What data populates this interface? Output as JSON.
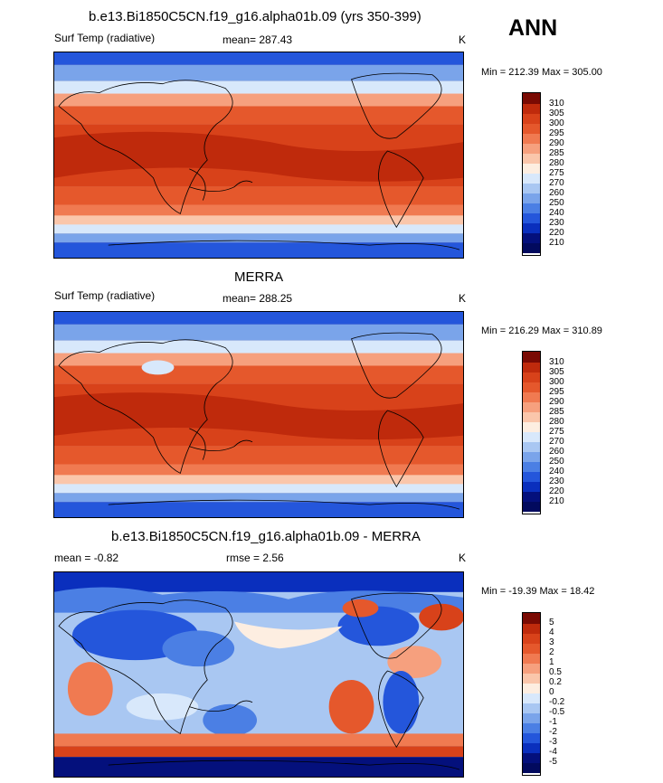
{
  "season": "ANN",
  "panels": [
    {
      "title": "b.e13.Bi1850C5CN.f19_g16.alpha01b.09 (yrs 350-399)",
      "left_label": "Surf Temp (radiative)",
      "center_label": "mean= 287.43",
      "right_label": "K",
      "minmax": "Min = 212.39 Max = 305.00",
      "levels": [
        "310",
        "305",
        "300",
        "295",
        "290",
        "285",
        "280",
        "275",
        "270",
        "260",
        "250",
        "240",
        "230",
        "220",
        "210"
      ],
      "colors": [
        "#7a0a03",
        "#bf2a0c",
        "#d8421a",
        "#e5582c",
        "#f07a51",
        "#f6a07e",
        "#fac6ab",
        "#fdeee1",
        "#d8e8fb",
        "#a9c7f2",
        "#7aa4ea",
        "#4b7fe4",
        "#2456db",
        "#0a2fbd",
        "#04107c",
        "#020a5e"
      ]
    },
    {
      "title": "MERRA",
      "left_label": "Surf Temp (radiative)",
      "center_label": "mean= 288.25",
      "right_label": "K",
      "minmax": "Min = 216.29 Max = 310.89",
      "levels": [
        "310",
        "305",
        "300",
        "295",
        "290",
        "285",
        "280",
        "275",
        "270",
        "260",
        "250",
        "240",
        "230",
        "220",
        "210"
      ],
      "colors": [
        "#7a0a03",
        "#bf2a0c",
        "#d8421a",
        "#e5582c",
        "#f07a51",
        "#f6a07e",
        "#fac6ab",
        "#fdeee1",
        "#d8e8fb",
        "#a9c7f2",
        "#7aa4ea",
        "#4b7fe4",
        "#2456db",
        "#0a2fbd",
        "#04107c",
        "#020a5e"
      ]
    },
    {
      "title": "b.e13.Bi1850C5CN.f19_g16.alpha01b.09 - MERRA",
      "left_label": "mean =  -0.82",
      "center_label": "rmse =   2.56",
      "right_label": "K",
      "minmax": "Min = -19.39 Max =  18.42",
      "levels": [
        "5",
        "4",
        "3",
        "2",
        "1",
        "0.5",
        "0.2",
        "0",
        "-0.2",
        "-0.5",
        "-1",
        "-2",
        "-3",
        "-4",
        "-5"
      ],
      "colors": [
        "#7a0a03",
        "#bf2a0c",
        "#d8421a",
        "#e5582c",
        "#f07a51",
        "#f6a07e",
        "#fac6ab",
        "#fdeee1",
        "#d8e8fb",
        "#a9c7f2",
        "#7aa4ea",
        "#4b7fe4",
        "#2456db",
        "#0a2fbd",
        "#04107c",
        "#020a5e"
      ]
    }
  ]
}
